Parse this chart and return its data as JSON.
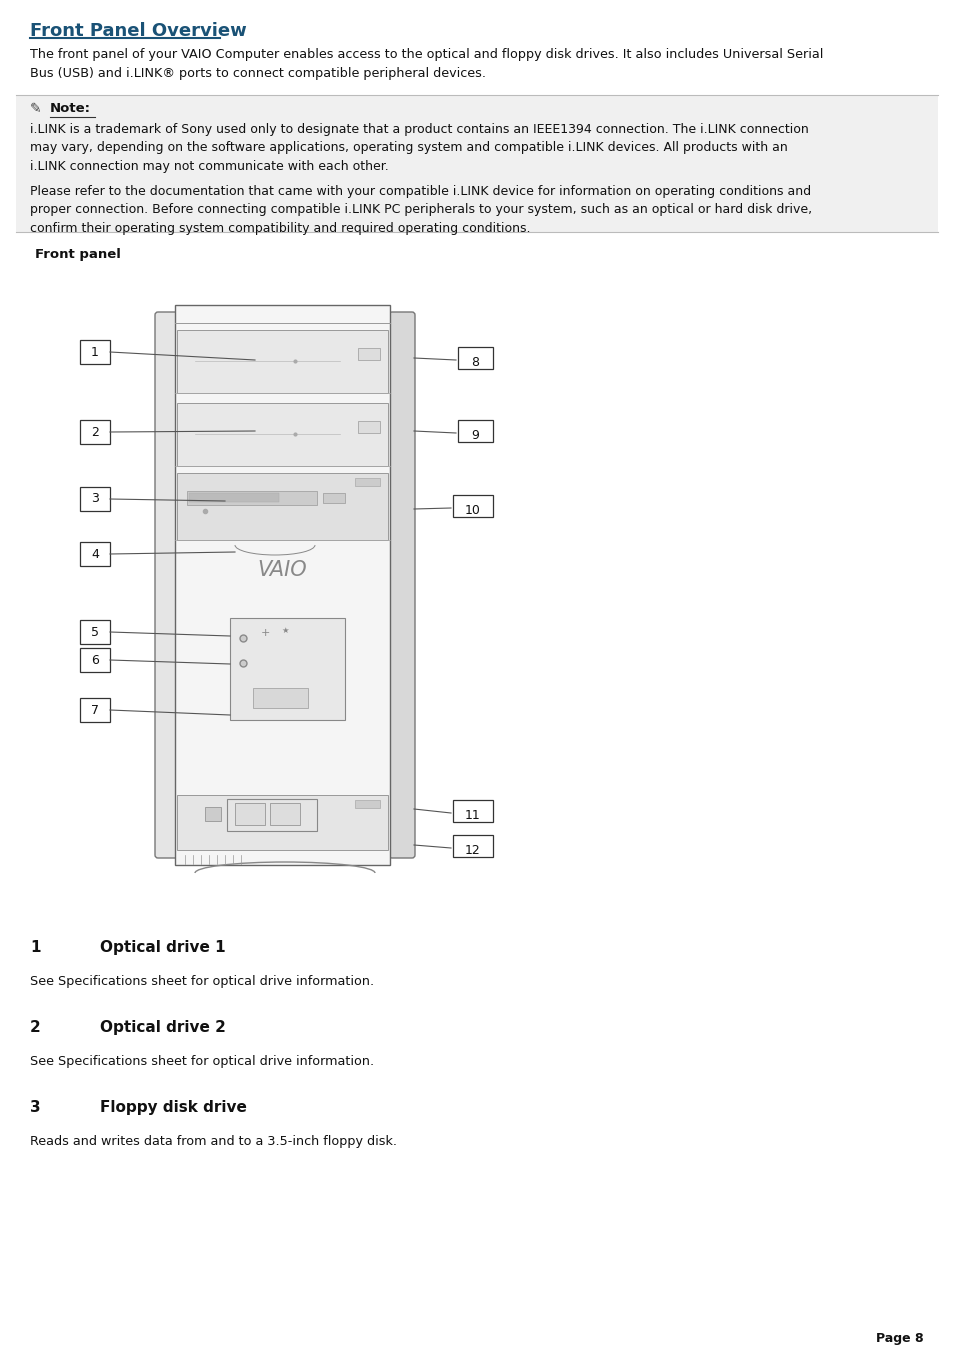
{
  "title": "Front Panel Overview",
  "title_color": "#1a5276",
  "bg_color": "#ffffff",
  "note_bg": "#f0f0f0",
  "intro_text": "The front panel of your VAIO Computer enables access to the optical and floppy disk drives. It also includes Universal Serial\nBus (USB) and i.LINK® ports to connect compatible peripheral devices.",
  "note_label": "Note:",
  "note_text1": "i.LINK is a trademark of Sony used only to designate that a product contains an IEEE1394 connection. The i.LINK connection\nmay vary, depending on the software applications, operating system and compatible i.LINK devices. All products with an\ni.LINK connection may not communicate with each other.",
  "note_text2": "Please refer to the documentation that came with your compatible i.LINK device for information on operating conditions and\nproper connection. Before connecting compatible i.LINK PC peripherals to your system, such as an optical or hard disk drive,\nconfirm their operating system compatibility and required operating conditions.",
  "front_panel_label": "Front panel",
  "item1_num": "1",
  "item1_title": "Optical drive 1",
  "item1_desc": "See Specifications sheet for optical drive information.",
  "item2_num": "2",
  "item2_title": "Optical drive 2",
  "item2_desc": "See Specifications sheet for optical drive information.",
  "item3_num": "3",
  "item3_title": "Floppy disk drive",
  "item3_desc": "Reads and writes data from and to a 3.5-inch floppy disk.",
  "page_num": "Page 8",
  "panel_line_color": "#555555",
  "label_border": "#333333",
  "drive_color": "#eeeeee",
  "body_color": "#f5f5f5"
}
